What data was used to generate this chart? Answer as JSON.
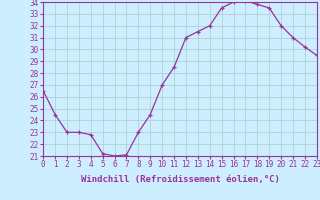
{
  "x": [
    0,
    1,
    2,
    3,
    4,
    5,
    6,
    7,
    8,
    9,
    10,
    11,
    12,
    13,
    14,
    15,
    16,
    17,
    18,
    19,
    20,
    21,
    22,
    23
  ],
  "y": [
    26.5,
    24.5,
    23.0,
    23.0,
    22.8,
    21.2,
    21.0,
    21.1,
    23.0,
    24.5,
    27.0,
    28.5,
    31.0,
    31.5,
    32.0,
    33.5,
    34.0,
    34.1,
    33.8,
    33.5,
    32.0,
    31.0,
    30.2,
    29.5
  ],
  "xlim": [
    0,
    23
  ],
  "ylim": [
    21,
    34
  ],
  "yticks": [
    21,
    22,
    23,
    24,
    25,
    26,
    27,
    28,
    29,
    30,
    31,
    32,
    33,
    34
  ],
  "xticks": [
    0,
    1,
    2,
    3,
    4,
    5,
    6,
    7,
    8,
    9,
    10,
    11,
    12,
    13,
    14,
    15,
    16,
    17,
    18,
    19,
    20,
    21,
    22,
    23
  ],
  "xlabel": "Windchill (Refroidissement éolien,°C)",
  "line_color": "#993399",
  "marker": "+",
  "bg_color": "#cceeff",
  "grid_color": "#aacccc",
  "tick_label_fontsize": 5.5,
  "xlabel_fontsize": 6.5
}
